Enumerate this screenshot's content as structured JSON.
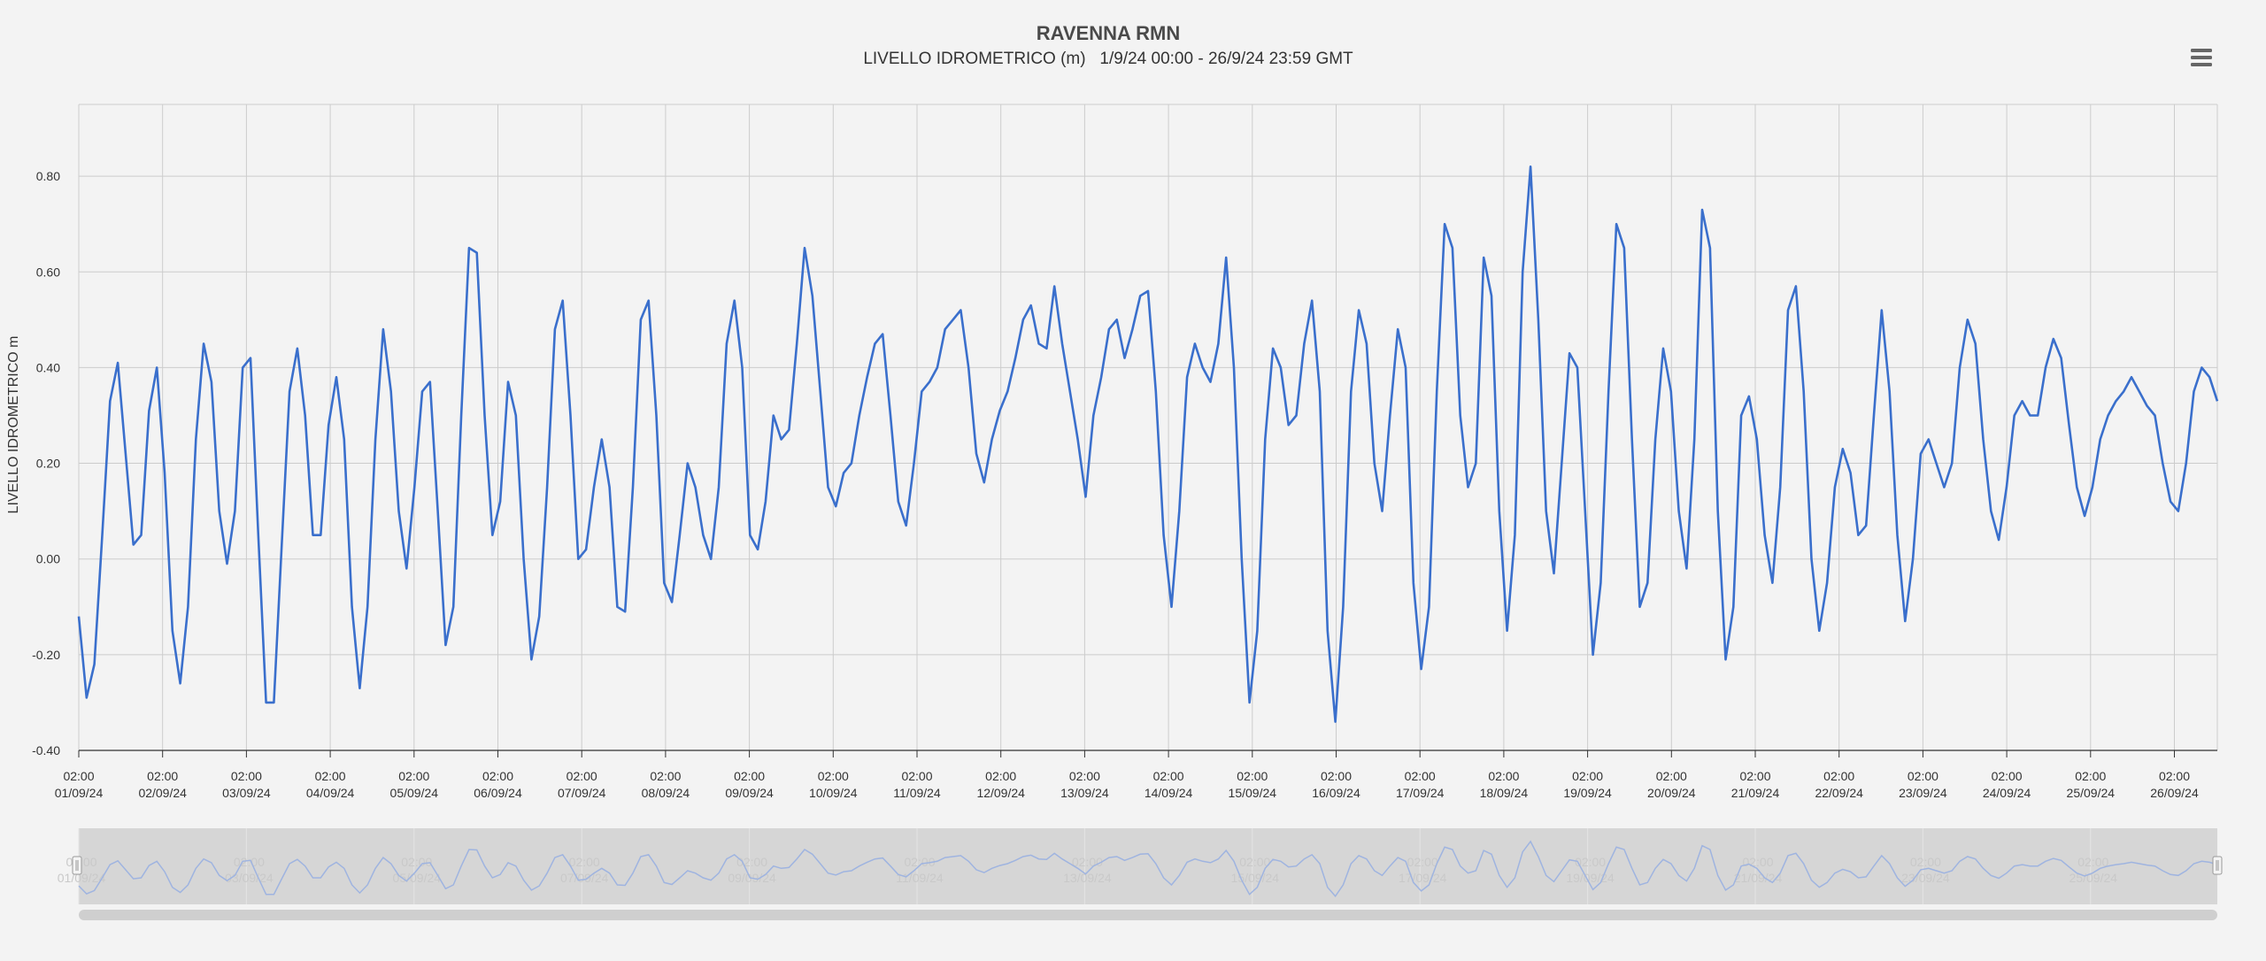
{
  "chart_data": {
    "type": "line",
    "title": "RAVENNA RMN",
    "subtitle": "LIVELLO IDROMETRICO (m)   1/9/24 00:00 - 26/9/24 23:59 GMT",
    "ylabel": "LIVELLO IDROMETRICO m",
    "xlabel": "",
    "ylim": [
      -0.4,
      0.95
    ],
    "yticks": [
      "-0.40",
      "-0.20",
      "0.00",
      "0.20",
      "0.40",
      "0.60",
      "0.80"
    ],
    "x_tick_time": "02:00",
    "x_tick_dates": [
      "01/09/24",
      "02/09/24",
      "03/09/24",
      "04/09/24",
      "05/09/24",
      "06/09/24",
      "07/09/24",
      "08/09/24",
      "09/09/24",
      "10/09/24",
      "11/09/24",
      "12/09/24",
      "13/09/24",
      "14/09/24",
      "15/09/24",
      "16/09/24",
      "17/09/24",
      "18/09/24",
      "19/09/24",
      "20/09/24",
      "21/09/24",
      "22/09/24",
      "23/09/24",
      "24/09/24",
      "25/09/24",
      "26/09/24"
    ],
    "navigator_tick_dates": [
      "01/09/24",
      "03/09/24",
      "05/09/24",
      "07/09/24",
      "09/09/24",
      "11/09/24",
      "13/09/24",
      "15/09/24",
      "17/09/24",
      "19/09/24",
      "21/09/24",
      "23/09/24",
      "25/09/24"
    ],
    "grid": true,
    "legend": "none",
    "series": [
      {
        "color": "#3a6fcc",
        "x_start": "01/09/24 00:00",
        "x_end": "26/09/24 23:59",
        "values": [
          -0.12,
          -0.29,
          -0.22,
          0.05,
          0.33,
          0.41,
          0.22,
          0.03,
          0.05,
          0.31,
          0.4,
          0.18,
          -0.15,
          -0.26,
          -0.1,
          0.25,
          0.45,
          0.37,
          0.1,
          -0.01,
          0.1,
          0.4,
          0.42,
          0.05,
          -0.3,
          -0.3,
          0.03,
          0.35,
          0.44,
          0.3,
          0.05,
          0.05,
          0.28,
          0.38,
          0.25,
          -0.1,
          -0.27,
          -0.1,
          0.25,
          0.48,
          0.35,
          0.1,
          -0.02,
          0.15,
          0.35,
          0.37,
          0.1,
          -0.18,
          -0.1,
          0.3,
          0.65,
          0.64,
          0.3,
          0.05,
          0.12,
          0.37,
          0.3,
          0.0,
          -0.21,
          -0.12,
          0.15,
          0.48,
          0.54,
          0.3,
          0.0,
          0.02,
          0.15,
          0.25,
          0.15,
          -0.1,
          -0.11,
          0.15,
          0.5,
          0.54,
          0.3,
          -0.05,
          -0.09,
          0.05,
          0.2,
          0.15,
          0.05,
          0.0,
          0.15,
          0.45,
          0.54,
          0.4,
          0.05,
          0.02,
          0.12,
          0.3,
          0.25,
          0.27,
          0.45,
          0.65,
          0.55,
          0.35,
          0.15,
          0.11,
          0.18,
          0.2,
          0.3,
          0.38,
          0.45,
          0.47,
          0.3,
          0.12,
          0.07,
          0.2,
          0.35,
          0.37,
          0.4,
          0.48,
          0.5,
          0.52,
          0.4,
          0.22,
          0.16,
          0.25,
          0.31,
          0.35,
          0.42,
          0.5,
          0.53,
          0.45,
          0.44,
          0.57,
          0.45,
          0.35,
          0.25,
          0.13,
          0.3,
          0.38,
          0.48,
          0.5,
          0.42,
          0.48,
          0.55,
          0.56,
          0.35,
          0.05,
          -0.1,
          0.1,
          0.38,
          0.45,
          0.4,
          0.37,
          0.45,
          0.63,
          0.4,
          0.0,
          -0.3,
          -0.15,
          0.25,
          0.44,
          0.4,
          0.28,
          0.3,
          0.45,
          0.54,
          0.35,
          -0.15,
          -0.34,
          -0.1,
          0.35,
          0.52,
          0.45,
          0.2,
          0.1,
          0.3,
          0.48,
          0.4,
          -0.05,
          -0.23,
          -0.1,
          0.35,
          0.7,
          0.65,
          0.3,
          0.15,
          0.2,
          0.63,
          0.55,
          0.1,
          -0.15,
          0.05,
          0.6,
          0.82,
          0.5,
          0.1,
          -0.03,
          0.2,
          0.43,
          0.4,
          0.1,
          -0.2,
          -0.05,
          0.35,
          0.7,
          0.65,
          0.25,
          -0.1,
          -0.05,
          0.25,
          0.44,
          0.35,
          0.1,
          -0.02,
          0.25,
          0.73,
          0.65,
          0.1,
          -0.21,
          -0.1,
          0.3,
          0.34,
          0.25,
          0.05,
          -0.05,
          0.15,
          0.52,
          0.57,
          0.35,
          0.0,
          -0.15,
          -0.05,
          0.15,
          0.23,
          0.18,
          0.05,
          0.07,
          0.3,
          0.52,
          0.35,
          0.05,
          -0.13,
          0.0,
          0.22,
          0.25,
          0.2,
          0.15,
          0.2,
          0.4,
          0.5,
          0.45,
          0.25,
          0.1,
          0.04,
          0.15,
          0.3,
          0.33,
          0.3,
          0.3,
          0.4,
          0.46,
          0.42,
          0.28,
          0.15,
          0.09,
          0.15,
          0.25,
          0.3,
          0.33,
          0.35,
          0.38,
          0.35,
          0.32,
          0.3,
          0.2,
          0.12,
          0.1,
          0.2,
          0.35,
          0.4,
          0.38,
          0.33
        ]
      }
    ]
  },
  "menu": {
    "icon": "menu-icon"
  }
}
